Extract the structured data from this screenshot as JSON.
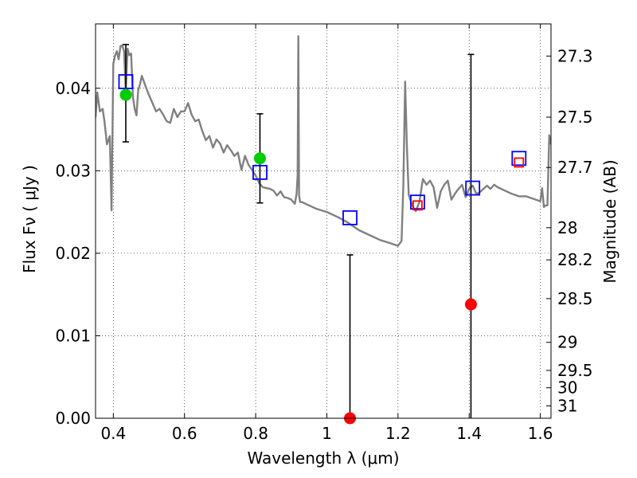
{
  "chart_data": {
    "type": "scatter",
    "xlabel": "Wavelength  λ (μm)",
    "ylabel": "Flux  Fν  ( μJy )",
    "y2label": "Magnitude (AB)",
    "xlim": [
      0.35,
      1.63
    ],
    "ylim": [
      0.0,
      0.0478
    ],
    "grid": true,
    "x_ticks": [
      0.4,
      0.6,
      0.8,
      1.0,
      1.2,
      1.4,
      1.6
    ],
    "x_tick_labels": [
      "0.4",
      "0.6",
      "0.8",
      "1",
      "1.2",
      "1.4",
      "1.6"
    ],
    "y_ticks": [
      0.0,
      0.01,
      0.02,
      0.03,
      0.04
    ],
    "y_tick_labels": [
      "0.00",
      "0.01",
      "0.02",
      "0.03",
      "0.04"
    ],
    "y2_ticks": [
      {
        "label": "27.3",
        "flux": 0.0439
      },
      {
        "label": "27.5",
        "flux": 0.0365
      },
      {
        "label": "27.7",
        "flux": 0.0304
      },
      {
        "label": "28",
        "flux": 0.0231
      },
      {
        "label": "28.2",
        "flux": 0.0192
      },
      {
        "label": "28.5",
        "flux": 0.0145
      },
      {
        "label": "29",
        "flux": 0.0092
      },
      {
        "label": "29.5",
        "flux": 0.0058
      },
      {
        "label": "30",
        "flux": 0.0037
      },
      {
        "label": "31",
        "flux": 0.0015
      }
    ],
    "series": [
      {
        "role": "model-spectrum",
        "kind": "line",
        "color": "#808080",
        "x": [
          0.35,
          0.355,
          0.362,
          0.37,
          0.375,
          0.382,
          0.39,
          0.395,
          0.4,
          0.405,
          0.41,
          0.415,
          0.42,
          0.425,
          0.43,
          0.435,
          0.44,
          0.445,
          0.45,
          0.455,
          0.46,
          0.465,
          0.47,
          0.475,
          0.48,
          0.49,
          0.5,
          0.51,
          0.52,
          0.53,
          0.54,
          0.55,
          0.56,
          0.57,
          0.58,
          0.59,
          0.6,
          0.61,
          0.62,
          0.63,
          0.64,
          0.65,
          0.66,
          0.67,
          0.68,
          0.69,
          0.7,
          0.71,
          0.72,
          0.73,
          0.74,
          0.75,
          0.76,
          0.77,
          0.78,
          0.79,
          0.8,
          0.81,
          0.82,
          0.83,
          0.84,
          0.85,
          0.86,
          0.87,
          0.88,
          0.89,
          0.9,
          0.91,
          0.915,
          0.918,
          0.92,
          0.922,
          0.925,
          0.93,
          0.95,
          0.97,
          1.0,
          1.03,
          1.06,
          1.09,
          1.12,
          1.15,
          1.18,
          1.2,
          1.21,
          1.215,
          1.22,
          1.225,
          1.23,
          1.24,
          1.25,
          1.26,
          1.27,
          1.28,
          1.29,
          1.3,
          1.31,
          1.32,
          1.33,
          1.34,
          1.35,
          1.36,
          1.37,
          1.38,
          1.39,
          1.4,
          1.41,
          1.42,
          1.43,
          1.44,
          1.45,
          1.46,
          1.47,
          1.48,
          1.49,
          1.5,
          1.52,
          1.54,
          1.56,
          1.58,
          1.6,
          1.605,
          1.61,
          1.615,
          1.62,
          1.625,
          1.63
        ],
        "y": [
          0.0365,
          0.0395,
          0.0372,
          0.0375,
          0.036,
          0.0332,
          0.0342,
          0.0252,
          0.043,
          0.044,
          0.0445,
          0.0435,
          0.0451,
          0.0452,
          0.0445,
          0.0395,
          0.0448,
          0.044,
          0.0442,
          0.039,
          0.0375,
          0.0367,
          0.0398,
          0.0405,
          0.0415,
          0.0403,
          0.0392,
          0.0382,
          0.0372,
          0.0375,
          0.0368,
          0.036,
          0.0358,
          0.0375,
          0.0365,
          0.0372,
          0.0372,
          0.0382,
          0.0368,
          0.036,
          0.0362,
          0.0348,
          0.0337,
          0.0342,
          0.0328,
          0.0338,
          0.0333,
          0.0322,
          0.0331,
          0.0325,
          0.0318,
          0.0322,
          0.0301,
          0.0318,
          0.0307,
          0.0301,
          0.0294,
          0.0285,
          0.028,
          0.0279,
          0.0278,
          0.0276,
          0.027,
          0.0275,
          0.0268,
          0.0267,
          0.0265,
          0.026,
          0.0272,
          0.0295,
          0.0463,
          0.027,
          0.0262,
          0.0262,
          0.0258,
          0.0254,
          0.025,
          0.0244,
          0.0237,
          0.0228,
          0.0222,
          0.0216,
          0.0212,
          0.0209,
          0.0215,
          0.028,
          0.0408,
          0.033,
          0.0271,
          0.0258,
          0.0251,
          0.0262,
          0.029,
          0.0283,
          0.0288,
          0.028,
          0.0255,
          0.0275,
          0.0283,
          0.0288,
          0.0265,
          0.0272,
          0.0278,
          0.0283,
          0.0268,
          0.0278,
          0.0282,
          0.0272,
          0.0274,
          0.0278,
          0.0282,
          0.0278,
          0.0283,
          0.028,
          0.0278,
          0.0276,
          0.0272,
          0.0269,
          0.0269,
          0.0266,
          0.0263,
          0.0279,
          0.0256,
          0.0258,
          0.0258,
          0.0343,
          0.0332
        ]
      },
      {
        "role": "model-photometry",
        "kind": "open-square",
        "color": "#0000ff",
        "x": [
          0.435,
          0.812,
          1.065,
          1.255,
          1.41,
          1.54
        ],
        "y": [
          0.0408,
          0.0298,
          0.0243,
          0.0262,
          0.0279,
          0.0315
        ]
      },
      {
        "role": "model-photometry-red",
        "kind": "open-square",
        "color": "#ff0000",
        "x": [
          1.255,
          1.54
        ],
        "y": [
          0.0258,
          0.031
        ]
      },
      {
        "role": "detections",
        "kind": "filled-circle",
        "color": "#00cc00",
        "x": [
          0.435,
          0.812
        ],
        "y": [
          0.0392,
          0.0315
        ]
      },
      {
        "role": "non-detections",
        "kind": "filled-circle",
        "color": "#ff0000",
        "x": [
          1.065,
          1.405
        ],
        "y": [
          0.0,
          0.0138
        ]
      }
    ],
    "errorbars": [
      {
        "x": 0.435,
        "low": 0.0335,
        "high": 0.0453
      },
      {
        "x": 0.812,
        "low": 0.0261,
        "high": 0.0369
      },
      {
        "x": 1.065,
        "low": 0.0,
        "high": 0.0198
      },
      {
        "x": 1.405,
        "low": 0.0,
        "high": 0.0441
      }
    ]
  }
}
